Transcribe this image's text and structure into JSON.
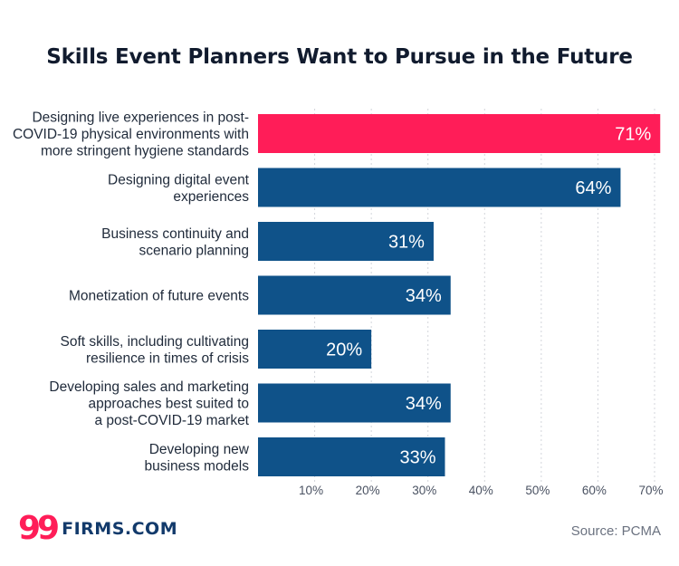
{
  "chart_data": {
    "type": "bar",
    "orientation": "horizontal",
    "title": "Skills Event Planners Want to Pursue in the Future",
    "categories": [
      [
        "Designing live experiences in post-",
        "COVID-19 physical environments with",
        "more stringent hygiene standards"
      ],
      [
        "Designing digital event",
        "experiences"
      ],
      [
        "Business continuity and",
        "scenario planning"
      ],
      [
        "Monetization of future events"
      ],
      [
        "Soft skills, including cultivating",
        "resilience in times of crisis"
      ],
      [
        "Developing sales and marketing",
        "approaches best suited to",
        "a post-COVID-19 market"
      ],
      [
        "Developing new",
        "business models"
      ]
    ],
    "values": [
      71,
      64,
      31,
      34,
      20,
      34,
      33
    ],
    "value_labels": [
      "71%",
      "64%",
      "31%",
      "34%",
      "20%",
      "34%",
      "33%"
    ],
    "xlim": [
      0,
      70
    ],
    "xticks": [
      10,
      20,
      30,
      40,
      50,
      60,
      70
    ],
    "xtick_labels": [
      "10%",
      "20%",
      "30%",
      "40%",
      "50%",
      "60%",
      "70%"
    ],
    "grid": "vertical-dashed",
    "colors": {
      "highlight": "#ff1d58",
      "default": "#0f5289"
    },
    "highlight_index": 0
  },
  "branding": {
    "logo_mark": "99",
    "logo_text": "FIRMS.COM"
  },
  "source": "Source: PCMA"
}
